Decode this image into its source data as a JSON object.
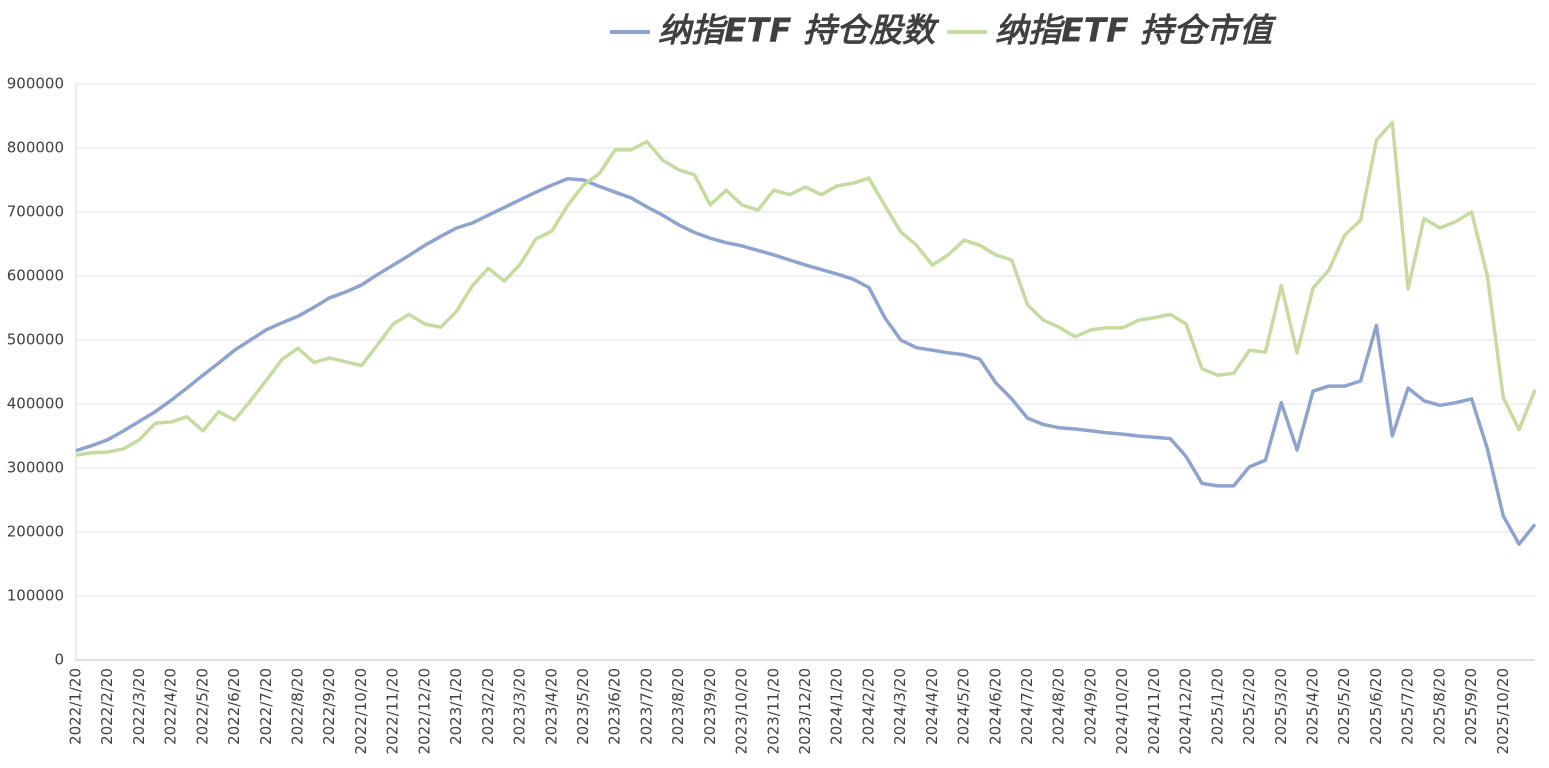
{
  "chart_data": {
    "type": "line",
    "categories": [
      "2022/1/20",
      null,
      "2022/2/20",
      null,
      "2022/3/20",
      null,
      "2022/4/20",
      null,
      "2022/5/20",
      null,
      "2022/6/20",
      null,
      "2022/7/20",
      null,
      "2022/8/20",
      null,
      "2022/9/20",
      null,
      "2022/10/20",
      null,
      "2022/11/20",
      null,
      "2022/12/20",
      null,
      "2023/1/20",
      null,
      "2023/2/20",
      null,
      "2023/3/20",
      null,
      "2023/4/20",
      null,
      "2023/5/20",
      null,
      "2023/6/20",
      null,
      "2023/7/20",
      null,
      "2023/8/20",
      null,
      "2023/9/20",
      null,
      "2023/10/20",
      null,
      "2023/11/20",
      null,
      "2023/12/20",
      null,
      "2024/1/20",
      null,
      "2024/2/20",
      null,
      "2024/3/20",
      null,
      "2024/4/20",
      null,
      "2024/5/20",
      null,
      "2024/6/20",
      null,
      "2024/7/20",
      null,
      "2024/8/20",
      null,
      "2024/9/20",
      null,
      "2024/10/20",
      null,
      "2024/11/20",
      null,
      "2024/12/20",
      null,
      "2025/1/20",
      null,
      "2025/2/20",
      null,
      "2025/3/20",
      null,
      "2025/4/20",
      null,
      "2025/5/20",
      null,
      "2025/6/20",
      null,
      "2025/7/20",
      null,
      "2025/8/20",
      null,
      "2025/9/20",
      null,
      "2025/10/20",
      null,
      null
    ],
    "series": [
      {
        "name": "纳指ETF 持仓股数",
        "color": "#8ea3cf",
        "values": [
          327000,
          335000,
          344000,
          358000,
          373000,
          388000,
          406000,
          425000,
          445000,
          464000,
          484000,
          500000,
          516000,
          527000,
          537000,
          551000,
          566000,
          575000,
          586000,
          602000,
          617000,
          632000,
          648000,
          662000,
          675000,
          683000,
          695000,
          707000,
          719000,
          731000,
          742000,
          752000,
          750000,
          740000,
          731000,
          722000,
          708000,
          695000,
          680000,
          668000,
          659000,
          652000,
          647000,
          640000,
          633000,
          625000,
          617000,
          610000,
          603000,
          595000,
          582000,
          535000,
          500000,
          488000,
          484000,
          480000,
          477000,
          470000,
          433000,
          408000,
          378000,
          368000,
          363000,
          361000,
          358000,
          355000,
          353000,
          350000,
          348000,
          346000,
          318000,
          276000,
          272000,
          272000,
          302000,
          312000,
          402000,
          328000,
          420000,
          428000,
          428000,
          436000,
          523000,
          350000,
          425000,
          405000,
          398000,
          402000,
          408000,
          330000,
          225000,
          181000,
          212000
        ]
      },
      {
        "name": "纳指ETF 持仓市值",
        "color": "#c5dba0",
        "values": [
          320000,
          324000,
          325000,
          330000,
          344000,
          370000,
          372000,
          380000,
          358000,
          388000,
          375000,
          405000,
          437000,
          470000,
          487000,
          465000,
          472000,
          466000,
          460000,
          492000,
          525000,
          540000,
          525000,
          520000,
          545000,
          585000,
          612000,
          592000,
          618000,
          658000,
          670000,
          710000,
          742000,
          760000,
          797000,
          797000,
          810000,
          781000,
          766000,
          758000,
          711000,
          734000,
          711000,
          703000,
          734000,
          727000,
          739000,
          727000,
          741000,
          745000,
          753000,
          710000,
          669000,
          648000,
          617000,
          633000,
          656000,
          648000,
          633000,
          625000,
          555000,
          531000,
          520000,
          505000,
          516000,
          519000,
          519000,
          531000,
          535000,
          540000,
          525000,
          455000,
          445000,
          448000,
          484000,
          481000,
          585000,
          480000,
          581000,
          609000,
          664000,
          687000,
          812000,
          840000,
          580000,
          690000,
          675000,
          685000,
          700000,
          600000,
          410000,
          360000,
          422000
        ]
      }
    ],
    "ylim": [
      0,
      900000
    ],
    "yticks": [
      0,
      100000,
      200000,
      300000,
      400000,
      500000,
      600000,
      700000,
      800000,
      900000
    ],
    "grid": true,
    "legend": "top"
  }
}
